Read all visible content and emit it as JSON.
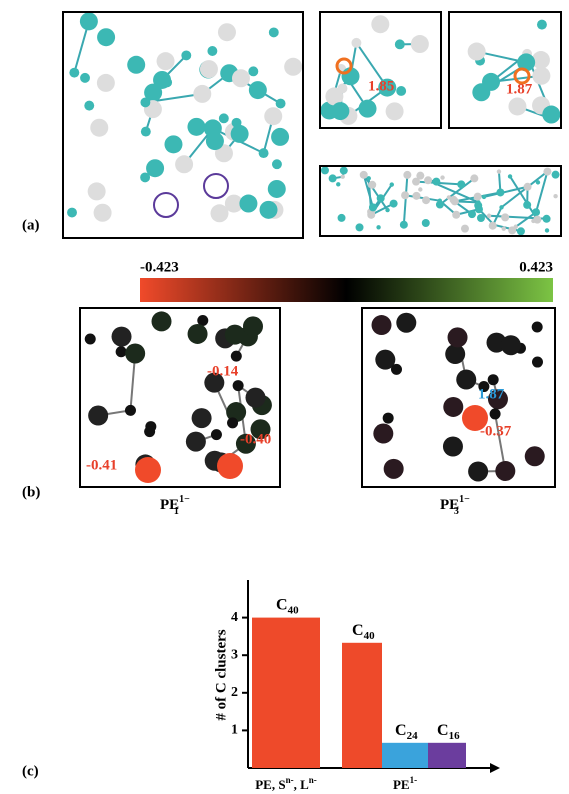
{
  "panel_labels": [
    "(a)",
    "(b)",
    "(c)"
  ],
  "panel_a": {
    "distances": [
      "1.85",
      "1.87"
    ]
  },
  "panel_b": {
    "colorbar_labels": [
      "-0.423",
      "0.423"
    ],
    "left": {
      "charges": [
        "-0.14",
        "-0.41",
        "-0.40"
      ],
      "caption": {
        "base": "PE",
        "sub": "1",
        "sup": "1−"
      }
    },
    "right": {
      "distance": "1.87",
      "charge": "-0.37",
      "caption": {
        "base": "PE",
        "sub": "3",
        "sup": "1−"
      }
    }
  },
  "chart_data": {
    "type": "bar",
    "y_label": "# of C clusters",
    "bar_labels": [
      [
        "C",
        "40"
      ],
      [
        "C",
        "40"
      ],
      [
        "C",
        "24"
      ],
      [
        "C",
        "16"
      ]
    ],
    "values": [
      4,
      3.33,
      0.67,
      0.67
    ],
    "colors": [
      "#ee4a2a",
      "#ee4a2a",
      "#3aa3dc",
      "#6b3d9e"
    ],
    "groups": [
      {
        "parts": [
          "PE, S",
          "n-",
          ", L",
          "n-"
        ]
      },
      {
        "parts": [
          "PE",
          "1-"
        ]
      }
    ],
    "ylim": [
      0,
      5
    ],
    "yticks": [
      1,
      2,
      3,
      4
    ]
  }
}
